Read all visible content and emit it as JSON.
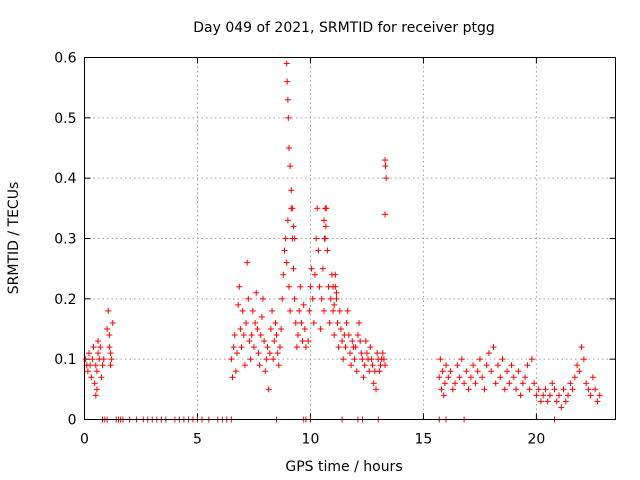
{
  "chart_data": {
    "type": "scatter",
    "title": "Day 049 of 2021, SRMTID for receiver ptgg",
    "xlabel": "GPS time / hours",
    "ylabel": "SRMTID / TECUs",
    "xlim": [
      0,
      23.5
    ],
    "ylim": [
      0,
      0.6
    ],
    "x_ticks": [
      0,
      5,
      10,
      15,
      20
    ],
    "y_ticks": [
      0,
      0.1,
      0.2,
      0.3,
      0.4,
      0.5,
      0.6
    ],
    "x_tick_labels": [
      "0",
      "5",
      "10",
      "15",
      "20"
    ],
    "y_tick_labels": [
      "0",
      "0.1",
      "0.2",
      "0.3",
      "0.4",
      "0.5",
      "0.6"
    ],
    "grid": true,
    "marker": "+",
    "marker_color": "#ff0000",
    "series": [
      {
        "name": "SRMTID",
        "x": [
          0.05,
          0.1,
          0.15,
          0.2,
          0.25,
          0.3,
          0.35,
          0.4,
          0.45,
          0.5,
          0.55,
          0.6,
          0.65,
          0.7,
          0.75,
          0.8,
          0.85,
          0.5,
          0.55,
          0.6,
          1.0,
          1.05,
          1.1,
          1.15,
          1.2,
          1.25,
          1.1,
          1.15,
          6.5,
          6.55,
          6.6,
          6.65,
          6.7,
          6.75,
          6.8,
          6.85,
          6.9,
          6.95,
          7.0,
          7.05,
          7.1,
          7.15,
          7.2,
          7.25,
          7.3,
          7.35,
          7.4,
          7.45,
          7.5,
          7.55,
          7.6,
          7.65,
          7.7,
          7.75,
          7.8,
          7.85,
          7.9,
          7.95,
          8.0,
          8.05,
          8.1,
          8.15,
          8.2,
          8.25,
          8.3,
          8.35,
          8.4,
          8.45,
          8.5,
          8.55,
          8.6,
          8.65,
          8.7,
          8.75,
          8.8,
          8.85,
          8.9,
          8.95,
          9.0,
          9.05,
          9.1,
          9.15,
          9.2,
          9.25,
          9.3,
          9.35,
          9.4,
          9.45,
          9.5,
          9.55,
          9.6,
          9.65,
          9.7,
          9.75,
          9.8,
          8.95,
          8.97,
          9.0,
          9.02,
          9.05,
          9.1,
          9.15,
          9.2,
          9.25,
          9.3,
          9.9,
          9.95,
          10.0,
          10.05,
          10.1,
          10.15,
          10.2,
          10.25,
          10.3,
          10.35,
          10.4,
          10.45,
          10.5,
          10.55,
          10.6,
          10.65,
          10.7,
          10.75,
          10.8,
          10.85,
          10.9,
          10.95,
          11.0,
          11.05,
          11.1,
          11.15,
          11.2,
          11.25,
          11.3,
          11.35,
          11.4,
          11.45,
          11.5,
          11.55,
          11.6,
          11.65,
          11.7,
          11.75,
          11.8,
          11.85,
          11.9,
          11.95,
          12.0,
          12.05,
          12.1,
          12.15,
          12.2,
          12.25,
          12.3,
          12.35,
          12.4,
          12.45,
          12.5,
          12.55,
          12.6,
          12.65,
          12.7,
          12.75,
          12.8,
          12.85,
          12.9,
          12.95,
          13.0,
          13.05,
          13.1,
          13.15,
          13.2,
          13.25,
          13.3,
          10.6,
          10.62,
          10.65,
          10.68,
          11.0,
          11.05,
          11.1,
          11.15,
          13.3,
          13.32,
          13.35,
          13.3,
          15.7,
          15.75,
          15.8,
          15.85,
          15.9,
          15.95,
          16.0,
          16.1,
          16.2,
          16.3,
          16.4,
          16.5,
          16.6,
          16.7,
          16.8,
          16.9,
          17.0,
          17.1,
          17.2,
          17.3,
          17.4,
          17.5,
          17.6,
          17.7,
          17.8,
          17.9,
          18.0,
          18.1,
          18.2,
          18.3,
          18.4,
          18.5,
          18.6,
          18.7,
          18.8,
          18.9,
          19.0,
          19.1,
          19.2,
          19.3,
          19.4,
          19.5,
          19.6,
          19.7,
          19.8,
          19.9,
          20.0,
          20.1,
          20.2,
          20.3,
          20.4,
          20.5,
          20.6,
          20.7,
          20.8,
          20.9,
          21.0,
          21.1,
          21.2,
          21.3,
          21.4,
          21.5,
          21.6,
          21.7,
          21.8,
          21.9,
          22.0,
          22.1,
          22.2,
          22.3,
          22.4,
          22.5,
          22.6,
          22.7,
          22.8,
          0.8,
          0.9,
          1.0,
          1.4,
          1.5,
          1.6,
          1.7,
          2.0,
          2.3,
          2.6,
          2.8,
          3.0,
          3.2,
          3.4,
          3.6,
          4.0,
          4.2,
          4.4,
          4.6,
          4.8,
          5.0,
          5.2,
          5.5,
          5.9,
          6.1,
          6.3,
          6.5,
          8.5,
          9.7,
          9.8,
          10.0,
          11.4,
          12.1,
          12.3,
          13.0,
          15.7,
          16.0,
          16.8,
          20.8
        ],
        "y": [
          0.1,
          0.09,
          0.08,
          0.11,
          0.09,
          0.07,
          0.1,
          0.12,
          0.06,
          0.09,
          0.08,
          0.11,
          0.1,
          0.12,
          0.07,
          0.09,
          0.1,
          0.04,
          0.05,
          0.13,
          0.15,
          0.18,
          0.12,
          0.09,
          0.1,
          0.16,
          0.14,
          0.11,
          0.1,
          0.07,
          0.12,
          0.14,
          0.08,
          0.11,
          0.19,
          0.22,
          0.15,
          0.12,
          0.18,
          0.14,
          0.09,
          0.16,
          0.26,
          0.2,
          0.13,
          0.1,
          0.14,
          0.18,
          0.12,
          0.16,
          0.21,
          0.15,
          0.11,
          0.09,
          0.14,
          0.17,
          0.2,
          0.13,
          0.08,
          0.1,
          0.12,
          0.05,
          0.11,
          0.15,
          0.18,
          0.1,
          0.13,
          0.16,
          0.14,
          0.11,
          0.09,
          0.12,
          0.15,
          0.2,
          0.24,
          0.28,
          0.3,
          0.26,
          0.33,
          0.22,
          0.18,
          0.35,
          0.3,
          0.25,
          0.2,
          0.16,
          0.12,
          0.14,
          0.18,
          0.22,
          0.16,
          0.13,
          0.19,
          0.15,
          0.12,
          0.59,
          0.56,
          0.53,
          0.5,
          0.45,
          0.42,
          0.38,
          0.35,
          0.32,
          0.3,
          0.13,
          0.18,
          0.22,
          0.25,
          0.2,
          0.16,
          0.24,
          0.3,
          0.35,
          0.28,
          0.22,
          0.15,
          0.2,
          0.25,
          0.18,
          0.3,
          0.35,
          0.28,
          0.22,
          0.16,
          0.2,
          0.24,
          0.18,
          0.14,
          0.22,
          0.2,
          0.16,
          0.12,
          0.18,
          0.15,
          0.13,
          0.1,
          0.14,
          0.12,
          0.16,
          0.18,
          0.14,
          0.11,
          0.09,
          0.13,
          0.12,
          0.1,
          0.12,
          0.08,
          0.14,
          0.16,
          0.13,
          0.11,
          0.1,
          0.07,
          0.09,
          0.13,
          0.11,
          0.1,
          0.08,
          0.12,
          0.1,
          0.09,
          0.06,
          0.08,
          0.05,
          0.11,
          0.1,
          0.08,
          0.09,
          0.1,
          0.11,
          0.1,
          0.09,
          0.33,
          0.3,
          0.35,
          0.32,
          0.22,
          0.19,
          0.24,
          0.21,
          0.43,
          0.42,
          0.4,
          0.34,
          0.07,
          0.1,
          0.05,
          0.08,
          0.04,
          0.06,
          0.09,
          0.07,
          0.08,
          0.05,
          0.06,
          0.09,
          0.07,
          0.1,
          0.06,
          0.08,
          0.05,
          0.07,
          0.09,
          0.06,
          0.08,
          0.1,
          0.07,
          0.05,
          0.09,
          0.11,
          0.08,
          0.12,
          0.06,
          0.09,
          0.07,
          0.1,
          0.05,
          0.08,
          0.06,
          0.09,
          0.07,
          0.05,
          0.08,
          0.04,
          0.06,
          0.07,
          0.09,
          0.05,
          0.1,
          0.06,
          0.04,
          0.05,
          0.03,
          0.04,
          0.05,
          0.03,
          0.04,
          0.06,
          0.05,
          0.03,
          0.04,
          0.02,
          0.05,
          0.03,
          0.04,
          0.06,
          0.05,
          0.07,
          0.09,
          0.08,
          0.12,
          0.1,
          0.06,
          0.05,
          0.04,
          0.07,
          0.05,
          0.03,
          0.04,
          0,
          0,
          0,
          0,
          0,
          0,
          0,
          0,
          0,
          0,
          0,
          0,
          0,
          0,
          0,
          0,
          0,
          0,
          0,
          0,
          0,
          0,
          0,
          0,
          0,
          0,
          0,
          0,
          0,
          0,
          0,
          0,
          0,
          0,
          0,
          0,
          0,
          0,
          0
        ]
      }
    ]
  }
}
